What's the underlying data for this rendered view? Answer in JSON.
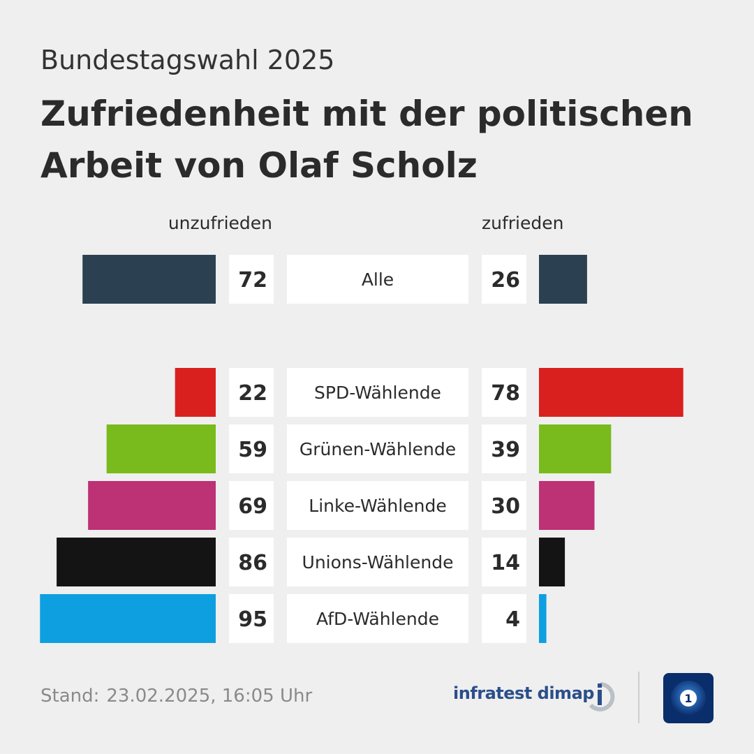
{
  "header": {
    "kicker": "Bundestagswahl 2025",
    "title": "Zufriedenheit mit der politischen Arbeit von Olaf Scholz"
  },
  "chart_data": {
    "type": "bar",
    "layout": "diverging",
    "left_label": "unzufrieden",
    "right_label": "zufrieden",
    "categories": [
      "Alle",
      "SPD-Wählende",
      "Grünen-Wählende",
      "Linke-Wählende",
      "Unions-Wählende",
      "AfD-Wählende"
    ],
    "series": [
      {
        "name": "unzufrieden",
        "values": [
          72,
          22,
          59,
          69,
          86,
          95
        ]
      },
      {
        "name": "zufrieden",
        "values": [
          26,
          78,
          39,
          30,
          14,
          4
        ]
      }
    ],
    "colors": [
      "#2b4152",
      "#d9201f",
      "#79bb1d",
      "#bd3175",
      "#141414",
      "#0e9fe0"
    ],
    "value_max": 100
  },
  "footer": {
    "stand_label": "Stand:",
    "stand_date": "23.02.2025, 16:05 Uhr",
    "source": "infratest dimap",
    "source_icon": "infratest-dimap-logo-icon",
    "broadcaster_icon": "tagesschau-logo-icon"
  }
}
